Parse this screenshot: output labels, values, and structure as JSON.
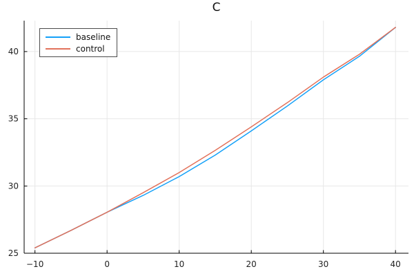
{
  "title": "C",
  "legend": {
    "entries": [
      {
        "label": "baseline",
        "color": "#13A0F8"
      },
      {
        "label": "control",
        "color": "#E2715A"
      }
    ]
  },
  "colors": {
    "background": "#ffffff",
    "gridline": "#e7e7e7",
    "axis": "#000000",
    "tick_label": "#1f1f1f",
    "legend_border": "#4a4a4a",
    "baseline_line": "#13A0F8",
    "control_line": "#E2715A"
  },
  "chart_data": {
    "type": "line",
    "title": "C",
    "xlabel": "",
    "ylabel": "",
    "xlim": [
      -11.5,
      41.8
    ],
    "ylim": [
      25,
      42.3
    ],
    "xticks": [
      -10,
      0,
      10,
      20,
      30,
      40
    ],
    "xtick_labels": [
      "−10",
      "0",
      "10",
      "20",
      "30",
      "40"
    ],
    "yticks": [
      25,
      30,
      35,
      40
    ],
    "ytick_labels": [
      "25",
      "30",
      "35",
      "40"
    ],
    "grid": true,
    "legend_position": "top-left",
    "x": [
      -10,
      -5,
      0,
      5,
      10,
      15,
      20,
      25,
      30,
      35,
      40
    ],
    "series": [
      {
        "name": "baseline",
        "color": "#13A0F8",
        "values": [
          25.4,
          26.7,
          28.05,
          29.3,
          30.7,
          32.3,
          34.1,
          35.95,
          37.9,
          39.65,
          41.8
        ]
      },
      {
        "name": "control",
        "color": "#E2715A",
        "values": [
          25.4,
          26.7,
          28.05,
          29.5,
          31.0,
          32.65,
          34.4,
          36.2,
          38.1,
          39.8,
          41.8
        ]
      }
    ]
  }
}
